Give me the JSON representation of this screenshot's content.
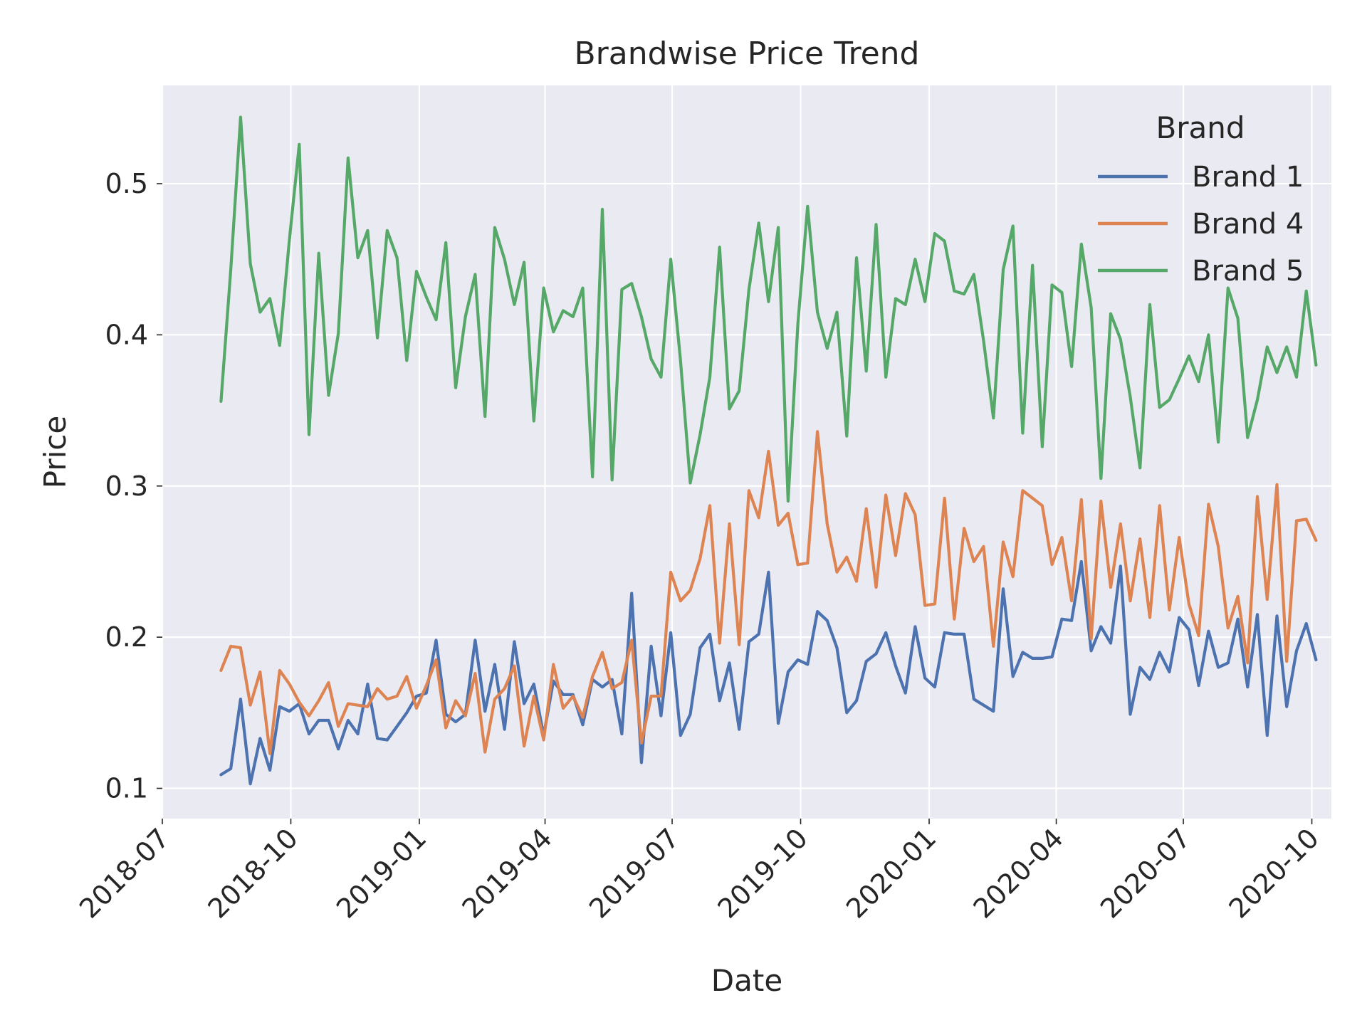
{
  "chart_data": {
    "type": "line",
    "title": "Brandwise Price Trend",
    "xlabel": "Date",
    "ylabel": "Price",
    "xlim": [
      "2018-07-01",
      "2020-10-15"
    ],
    "ylim": [
      0.08,
      0.565
    ],
    "x_ticks": [
      "2018-07",
      "2018-10",
      "2019-01",
      "2019-04",
      "2019-07",
      "2019-10",
      "2020-01",
      "2020-04",
      "2020-07",
      "2020-10"
    ],
    "y_ticks": [
      "0.1",
      "0.2",
      "0.3",
      "0.4",
      "0.5"
    ],
    "grid": true,
    "legend": {
      "title": "Brand",
      "position": "top-right"
    },
    "x_start": "2018-08-12",
    "x_step_days": 7,
    "series": [
      {
        "name": "Brand 1",
        "color": "#4c72b0",
        "values": [
          0.109,
          0.113,
          0.159,
          0.103,
          0.133,
          0.112,
          0.154,
          0.151,
          0.156,
          0.136,
          0.145,
          0.145,
          0.126,
          0.145,
          0.136,
          0.169,
          0.133,
          0.132,
          0.141,
          0.15,
          0.161,
          0.163,
          0.198,
          0.149,
          0.144,
          0.149,
          0.198,
          0.151,
          0.182,
          0.139,
          0.197,
          0.156,
          0.169,
          0.135,
          0.171,
          0.162,
          0.162,
          0.142,
          0.172,
          0.167,
          0.172,
          0.136,
          0.229,
          0.117,
          0.194,
          0.148,
          0.203,
          0.135,
          0.149,
          0.193,
          0.202,
          0.158,
          0.183,
          0.139,
          0.197,
          0.202,
          0.243,
          0.143,
          0.177,
          0.185,
          0.182,
          0.217,
          0.211,
          0.193,
          0.15,
          0.158,
          0.184,
          0.189,
          0.203,
          0.181,
          0.163,
          0.207,
          0.173,
          0.167,
          0.203,
          0.202,
          0.202,
          0.159,
          0.155,
          0.151,
          0.232,
          0.174,
          0.19,
          0.186,
          0.186,
          0.187,
          0.212,
          0.211,
          0.25,
          0.191,
          0.207,
          0.196,
          0.247,
          0.149,
          0.18,
          0.172,
          0.19,
          0.177,
          0.213,
          0.205,
          0.168,
          0.204,
          0.18,
          0.183,
          0.212,
          0.167,
          0.215,
          0.135,
          0.214,
          0.154,
          0.191,
          0.209,
          0.185
        ]
      },
      {
        "name": "Brand 4",
        "color": "#dd8452",
        "values": [
          0.178,
          0.194,
          0.193,
          0.155,
          0.177,
          0.123,
          0.178,
          0.169,
          0.157,
          0.148,
          0.158,
          0.17,
          0.141,
          0.156,
          0.155,
          0.154,
          0.166,
          0.159,
          0.161,
          0.174,
          0.153,
          0.168,
          0.185,
          0.14,
          0.158,
          0.148,
          0.176,
          0.124,
          0.159,
          0.166,
          0.181,
          0.128,
          0.161,
          0.132,
          0.182,
          0.153,
          0.161,
          0.147,
          0.174,
          0.19,
          0.166,
          0.17,
          0.198,
          0.13,
          0.161,
          0.161,
          0.243,
          0.224,
          0.231,
          0.252,
          0.287,
          0.196,
          0.275,
          0.195,
          0.297,
          0.279,
          0.323,
          0.274,
          0.282,
          0.248,
          0.249,
          0.336,
          0.275,
          0.243,
          0.253,
          0.237,
          0.285,
          0.233,
          0.294,
          0.254,
          0.295,
          0.281,
          0.221,
          0.222,
          0.292,
          0.212,
          0.272,
          0.25,
          0.26,
          0.194,
          0.263,
          0.24,
          0.297,
          0.292,
          0.287,
          0.248,
          0.266,
          0.224,
          0.291,
          0.199,
          0.29,
          0.233,
          0.275,
          0.224,
          0.265,
          0.213,
          0.287,
          0.218,
          0.266,
          0.222,
          0.201,
          0.288,
          0.26,
          0.206,
          0.227,
          0.183,
          0.293,
          0.225,
          0.301,
          0.184,
          0.277,
          0.278,
          0.264
        ]
      },
      {
        "name": "Brand 5",
        "color": "#55a868",
        "values": [
          0.356,
          0.443,
          0.544,
          0.447,
          0.415,
          0.424,
          0.393,
          0.463,
          0.526,
          0.334,
          0.454,
          0.36,
          0.401,
          0.517,
          0.451,
          0.469,
          0.398,
          0.469,
          0.451,
          0.383,
          0.442,
          0.425,
          0.41,
          0.461,
          0.365,
          0.412,
          0.44,
          0.346,
          0.471,
          0.45,
          0.42,
          0.448,
          0.343,
          0.431,
          0.402,
          0.416,
          0.412,
          0.431,
          0.306,
          0.483,
          0.304,
          0.43,
          0.434,
          0.412,
          0.384,
          0.372,
          0.45,
          0.383,
          0.302,
          0.334,
          0.372,
          0.458,
          0.351,
          0.363,
          0.43,
          0.474,
          0.422,
          0.471,
          0.29,
          0.407,
          0.485,
          0.415,
          0.391,
          0.415,
          0.333,
          0.451,
          0.376,
          0.473,
          0.372,
          0.424,
          0.42,
          0.45,
          0.422,
          0.467,
          0.462,
          0.429,
          0.427,
          0.44,
          0.396,
          0.345,
          0.443,
          0.472,
          0.335,
          0.446,
          0.326,
          0.433,
          0.428,
          0.379,
          0.46,
          0.418,
          0.305,
          0.414,
          0.397,
          0.359,
          0.312,
          0.42,
          0.352,
          0.357,
          0.371,
          0.386,
          0.369,
          0.4,
          0.329,
          0.431,
          0.411,
          0.332,
          0.357,
          0.392,
          0.375,
          0.392,
          0.372,
          0.429,
          0.38
        ]
      }
    ]
  }
}
